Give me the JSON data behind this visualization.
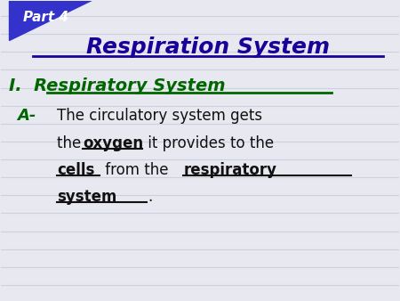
{
  "bg_color": "#e8e8f0",
  "line_color": "#c0c8d8",
  "title": "Respiration System",
  "title_color": "#1a0099",
  "section_label": "I.",
  "section_text": "Respiratory System",
  "section_color": "#006600",
  "bullet_label": "A-",
  "bullet_label_color": "#006600",
  "body_text_color": "#111111",
  "bold_underline_color": "#111111",
  "part_label": "Part 4",
  "part_label_color": "#ffffff",
  "triangle_color": "#3333cc",
  "num_lines": 15,
  "body_line1": "The circulatory system gets",
  "body_line2_pre": "the ",
  "body_line2_bold": "oxygen",
  "body_line2_post": " it provides to the",
  "body_line3_bold1": "cells",
  "body_line3_mid": " from the ",
  "body_line3_bold2": "respiratory",
  "body_line4_bold": "system",
  "body_line4_post": "."
}
